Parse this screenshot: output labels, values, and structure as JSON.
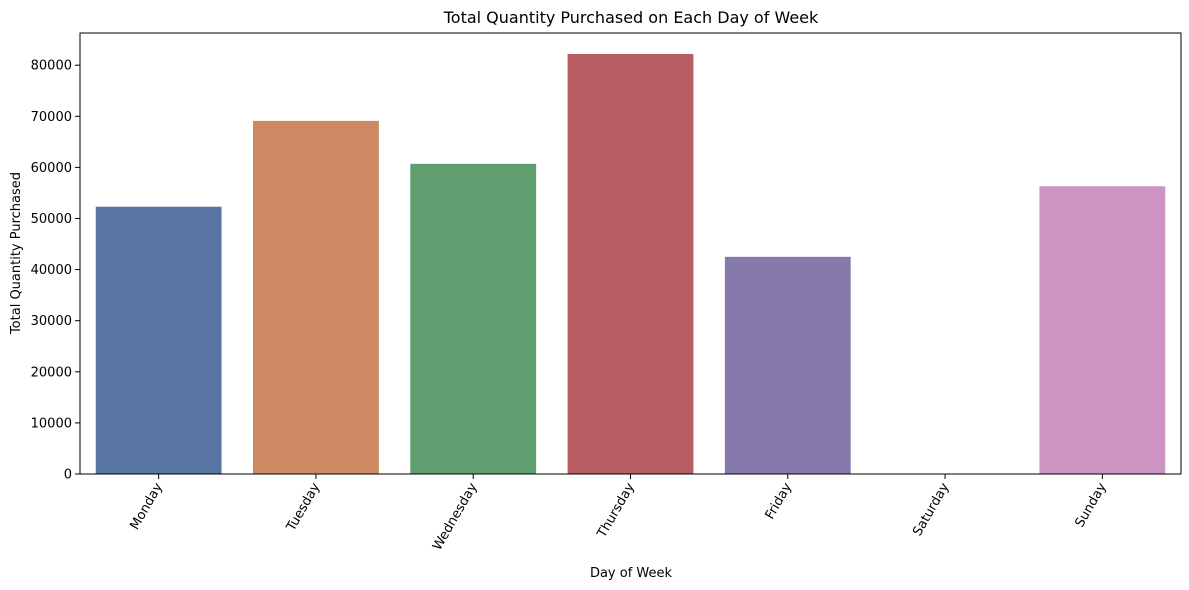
{
  "chart_data": {
    "type": "bar",
    "title": "Total Quantity Purchased on Each Day of Week",
    "xlabel": "Day of Week",
    "ylabel": "Total Quantity Purchased",
    "categories": [
      "Monday",
      "Tuesday",
      "Wednesday",
      "Thursday",
      "Friday",
      "Saturday",
      "Sunday"
    ],
    "values": [
      52300,
      69100,
      60700,
      82200,
      42500,
      0,
      56300
    ],
    "colors": [
      "#5975a4",
      "#cc8963",
      "#5f9e6e",
      "#b55d60",
      "#857aab",
      "#8d7866",
      "#cd94c1"
    ],
    "ylim": [
      0,
      86300
    ],
    "yticks": [
      0,
      10000,
      20000,
      30000,
      40000,
      50000,
      60000,
      70000,
      80000
    ],
    "ytick_labels": [
      "0",
      "10000",
      "20000",
      "30000",
      "40000",
      "50000",
      "60000",
      "70000",
      "80000"
    ],
    "grid": false,
    "legend": "none"
  }
}
